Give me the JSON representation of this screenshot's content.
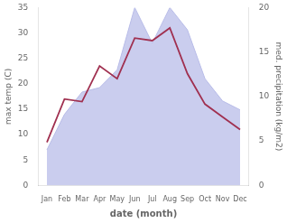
{
  "chart_data": {
    "type": "line",
    "categories": [
      "Jan",
      "Feb",
      "Mar",
      "Apr",
      "May",
      "Jun",
      "Jul",
      "Aug",
      "Sep",
      "Oct",
      "Nov",
      "Dec"
    ],
    "series": [
      {
        "type": "area",
        "axis": "y2",
        "color": "#b8bce8",
        "values": [
          4.0,
          8.0,
          10.5,
          11.0,
          13.0,
          20.0,
          16.0,
          20.0,
          17.5,
          12.0,
          9.5,
          8.5
        ]
      },
      {
        "type": "line",
        "color": "#a03050",
        "values": [
          8.5,
          17.0,
          16.5,
          23.5,
          21.0,
          29.0,
          28.5,
          31.0,
          22.0,
          16.0,
          13.5,
          11.0
        ]
      }
    ],
    "xlabel": "date (month)",
    "ylabel": "max temp (C)",
    "y2label": "med. precipitation (kg/m2)",
    "ylim": [
      0,
      35
    ],
    "yticks": [
      0,
      5,
      10,
      15,
      20,
      25,
      30,
      35
    ],
    "y2lim": [
      0,
      20
    ],
    "y2ticks": [
      0,
      5,
      10,
      15,
      20
    ],
    "grid": false
  }
}
